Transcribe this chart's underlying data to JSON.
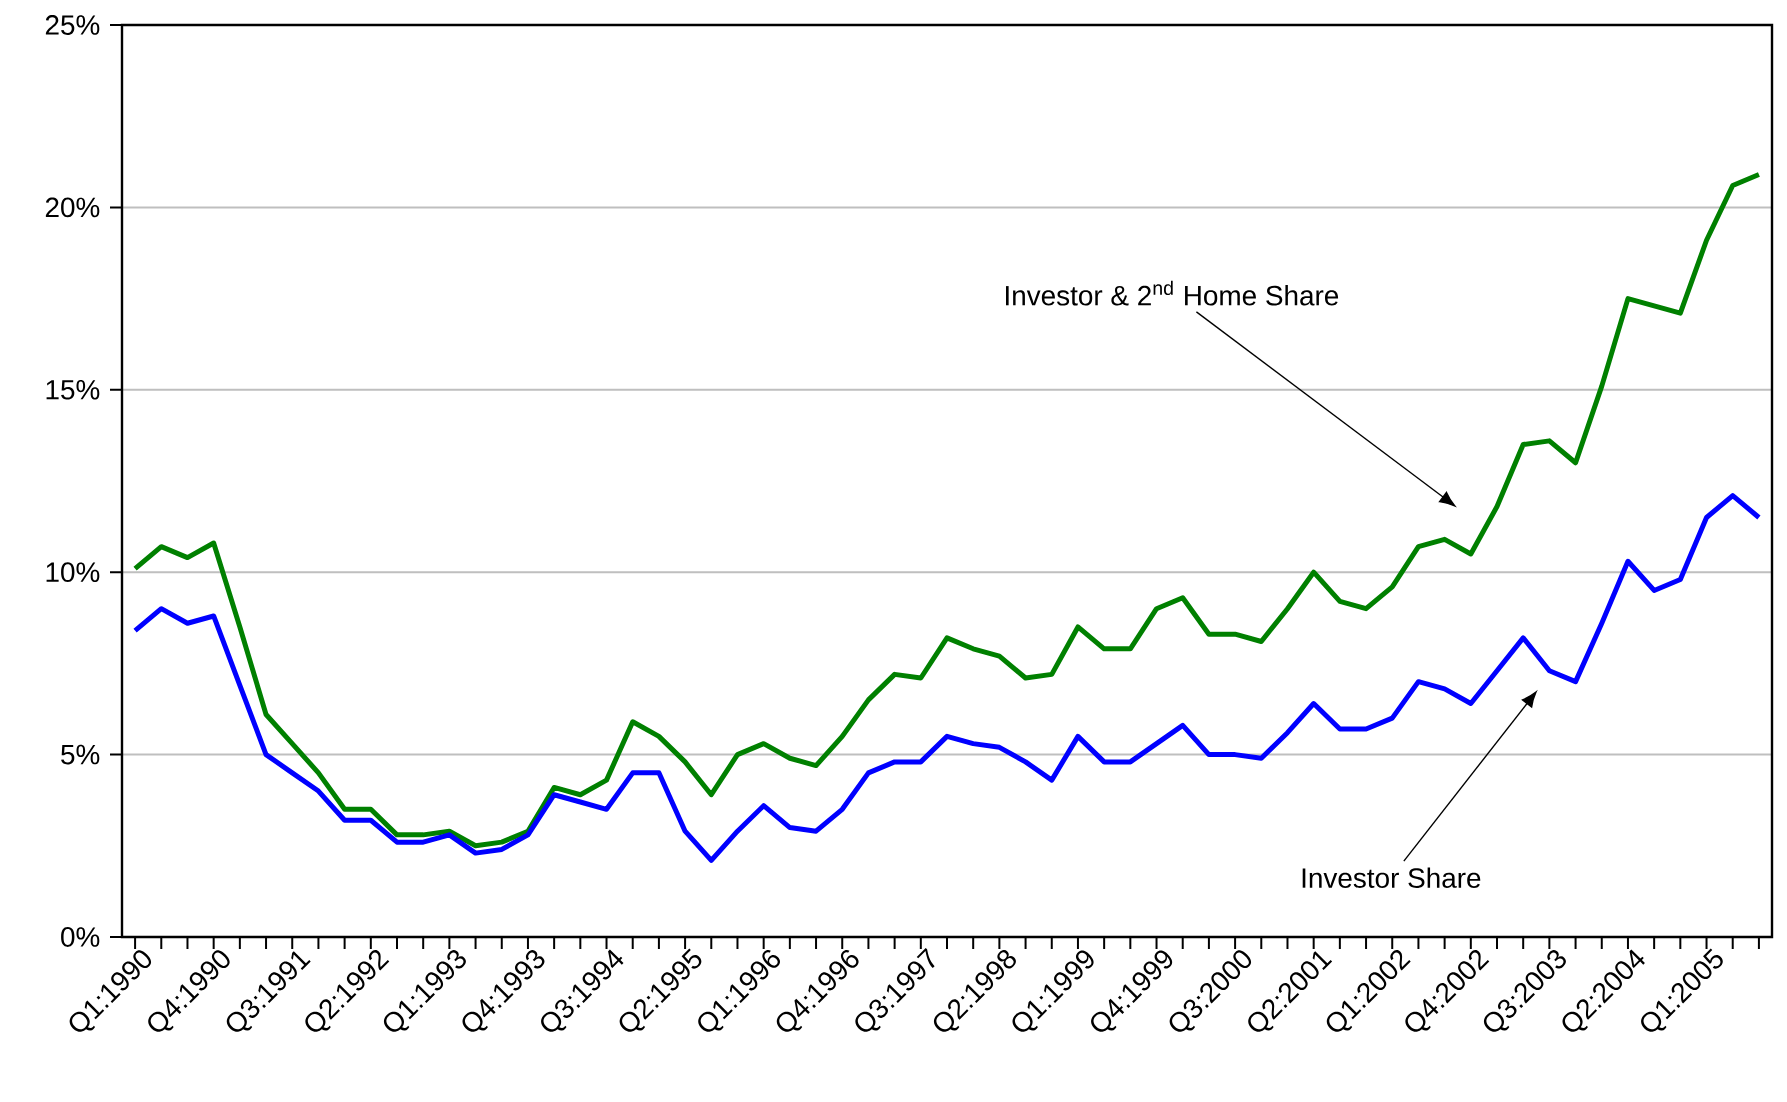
{
  "chart_data": {
    "type": "line",
    "categories": [
      "Q1:1990",
      null,
      null,
      "Q4:1990",
      null,
      null,
      "Q3:1991",
      null,
      null,
      "Q2:1992",
      null,
      null,
      "Q1:1993",
      null,
      null,
      "Q4:1993",
      null,
      null,
      "Q3:1994",
      null,
      null,
      "Q2:1995",
      null,
      null,
      "Q1:1996",
      null,
      null,
      "Q4:1996",
      null,
      null,
      "Q3:1997",
      null,
      null,
      "Q2:1998",
      null,
      null,
      "Q1:1999",
      null,
      null,
      "Q4:1999",
      null,
      null,
      "Q3:2000",
      null,
      null,
      "Q2:2001",
      null,
      null,
      "Q1:2002",
      null,
      null,
      "Q4:2002",
      null,
      null,
      "Q3:2003",
      null,
      null,
      "Q2:2004",
      null,
      null,
      "Q1:2005",
      null,
      null
    ],
    "series": [
      {
        "color": "#008000",
        "values": [
          10.1,
          10.7,
          10.4,
          10.8,
          8.5,
          6.1,
          5.3,
          4.5,
          3.5,
          3.5,
          2.8,
          2.8,
          2.9,
          2.5,
          2.6,
          2.9,
          4.1,
          3.9,
          4.3,
          5.9,
          5.5,
          4.8,
          3.9,
          5.0,
          5.3,
          4.9,
          4.7,
          5.5,
          6.5,
          7.2,
          7.1,
          8.2,
          7.9,
          7.7,
          7.1,
          7.2,
          8.5,
          7.9,
          7.9,
          9.0,
          9.3,
          8.3,
          8.3,
          8.1,
          9.0,
          10.0,
          9.2,
          9.0,
          9.6,
          10.7,
          10.9,
          10.5,
          11.8,
          13.5,
          13.6,
          13.0,
          15.1,
          17.5,
          17.3,
          17.1,
          19.1,
          20.6,
          20.9
        ]
      },
      {
        "color": "#0000ff",
        "values": [
          8.4,
          9.0,
          8.6,
          8.8,
          6.9,
          5.0,
          4.5,
          4.0,
          3.2,
          3.2,
          2.6,
          2.6,
          2.8,
          2.3,
          2.4,
          2.8,
          3.9,
          3.7,
          3.5,
          4.5,
          4.5,
          2.9,
          2.1,
          2.9,
          3.6,
          3.0,
          2.9,
          3.5,
          4.5,
          4.8,
          4.8,
          5.5,
          5.3,
          5.2,
          4.8,
          4.3,
          5.5,
          4.8,
          4.8,
          5.3,
          5.8,
          5.0,
          5.0,
          4.9,
          5.6,
          6.4,
          5.7,
          5.7,
          6.0,
          7.0,
          6.8,
          6.4,
          7.3,
          8.2,
          7.3,
          7.0,
          8.6,
          10.3,
          9.5,
          9.8,
          11.5,
          12.1,
          11.5
        ]
      }
    ],
    "ylim": [
      0,
      25
    ],
    "yticks": [
      {
        "value": 0,
        "label": "0%"
      },
      {
        "value": 5,
        "label": "5%"
      },
      {
        "value": 10,
        "label": "10%"
      },
      {
        "value": 15,
        "label": "15%"
      },
      {
        "value": 20,
        "label": "20%"
      },
      {
        "value": 25,
        "label": "25%"
      }
    ],
    "grid": "y",
    "legend": false,
    "marker": "none",
    "line_style": "solid",
    "annotations": [
      "Investor & 2$^{nd}$ Home Share",
      "Investor Share"
    ]
  }
}
